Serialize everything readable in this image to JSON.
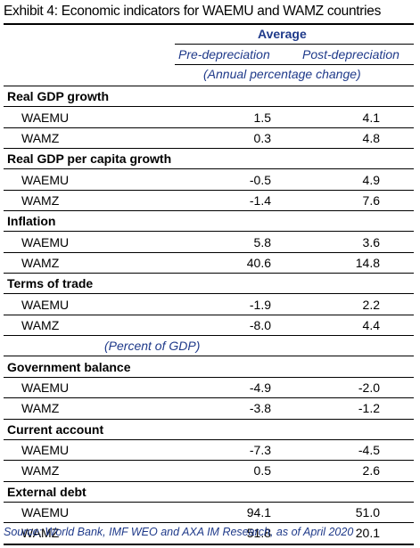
{
  "title": "Exhibit 4: Economic indicators for WAEMU and WAMZ countries",
  "header": {
    "average": "Average",
    "col1": "Pre-depreciation",
    "col2": "Post-depreciation",
    "unit_annual": "(Annual percentage change)",
    "unit_gdp": "(Percent of GDP)"
  },
  "sections": [
    {
      "title": "Real GDP growth",
      "rows": [
        {
          "label": "WAEMU",
          "pre": "1.5",
          "post": "4.1"
        },
        {
          "label": "WAMZ",
          "pre": "0.3",
          "post": "4.8"
        }
      ]
    },
    {
      "title": "Real GDP per capita growth",
      "rows": [
        {
          "label": "WAEMU",
          "pre": "-0.5",
          "post": "4.9"
        },
        {
          "label": "WAMZ",
          "pre": "-1.4",
          "post": "7.6"
        }
      ]
    },
    {
      "title": "Inflation",
      "rows": [
        {
          "label": "WAEMU",
          "pre": "5.8",
          "post": "3.6"
        },
        {
          "label": "WAMZ",
          "pre": "40.6",
          "post": "14.8"
        }
      ]
    },
    {
      "title": "Terms of trade",
      "rows": [
        {
          "label": "WAEMU",
          "pre": "-1.9",
          "post": "2.2"
        },
        {
          "label": "WAMZ",
          "pre": "-8.0",
          "post": "4.4"
        }
      ]
    },
    {
      "title": "Government balance",
      "rows": [
        {
          "label": "WAEMU",
          "pre": "-4.9",
          "post": "-2.0"
        },
        {
          "label": "WAMZ",
          "pre": "-3.8",
          "post": "-1.2"
        }
      ]
    },
    {
      "title": "Current account",
      "rows": [
        {
          "label": "WAEMU",
          "pre": "-7.3",
          "post": "-4.5"
        },
        {
          "label": "WAMZ",
          "pre": "0.5",
          "post": "2.6"
        }
      ]
    },
    {
      "title": "External debt",
      "rows": [
        {
          "label": "WAEMU",
          "pre": "94.1",
          "post": "51.0"
        },
        {
          "label": "WAMZ",
          "pre": "51.8",
          "post": "20.1"
        }
      ]
    }
  ],
  "source": "Source: World Bank, IMF WEO and AXA IM Research, as of April 2020",
  "colors": {
    "accent": "#1f3a8a",
    "text": "#000000"
  }
}
